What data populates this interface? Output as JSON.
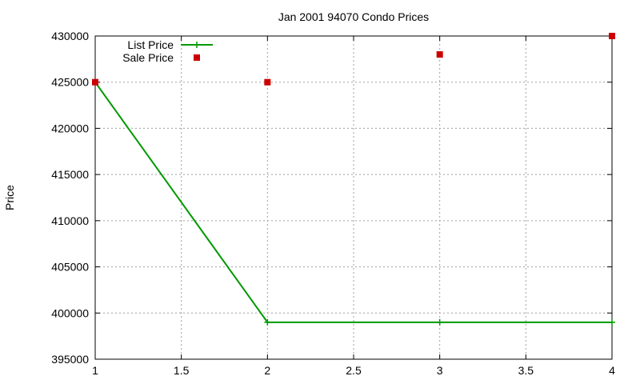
{
  "chart_data": {
    "type": "line",
    "title": "Jan 2001 94070 Condo Prices",
    "xlabel": "",
    "ylabel": "Price",
    "xlim": [
      1,
      4
    ],
    "ylim": [
      395000,
      430000
    ],
    "x_ticks": [
      "1",
      "1.5",
      "2",
      "2.5",
      "3",
      "3.5",
      "4"
    ],
    "y_ticks": [
      "395000",
      "400000",
      "405000",
      "410000",
      "415000",
      "420000",
      "425000",
      "430000"
    ],
    "grid": true,
    "legend_position": "top-left",
    "series": [
      {
        "name": "List Price",
        "style": "line-with-plus-markers",
        "color": "#009900",
        "x": [
          1,
          2,
          3,
          4
        ],
        "y": [
          425000,
          399000,
          399000,
          399000
        ]
      },
      {
        "name": "Sale Price",
        "style": "square-points",
        "color": "#cc0000",
        "x": [
          1,
          2,
          3,
          4
        ],
        "y": [
          425000,
          425000,
          428000,
          430000
        ]
      }
    ]
  }
}
